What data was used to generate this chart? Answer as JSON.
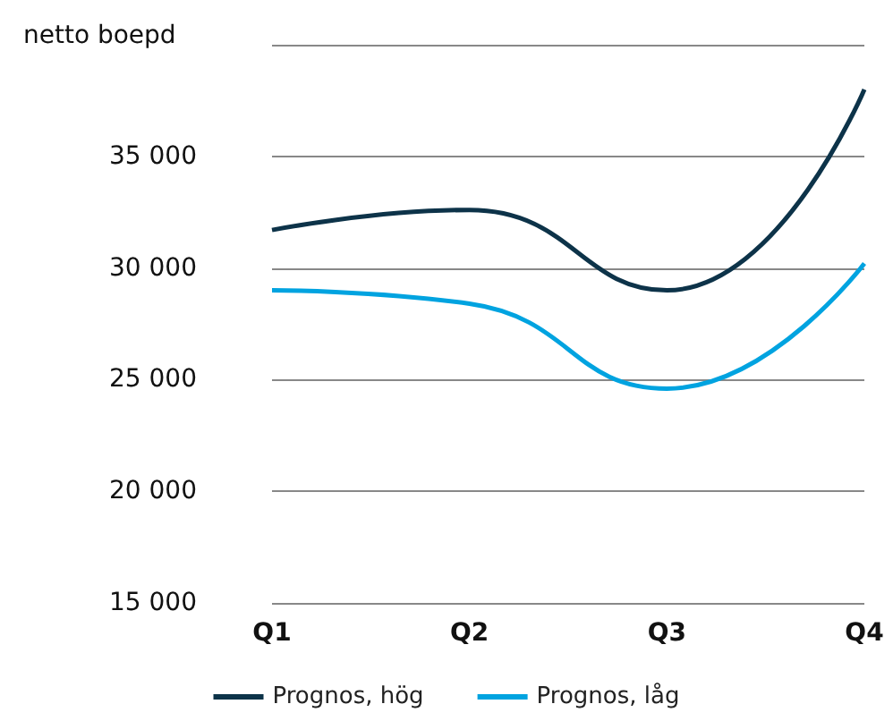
{
  "chart_data": {
    "type": "line",
    "ylabel": "netto boepd",
    "categories": [
      "Q1",
      "Q2",
      "Q3",
      "Q4"
    ],
    "series": [
      {
        "name": "Prognos, hög",
        "color": "#0d3349",
        "values": [
          31700,
          32600,
          29000,
          38000
        ]
      },
      {
        "name": "Prognos, låg",
        "color": "#00a3e0",
        "values": [
          29000,
          28400,
          24600,
          30200
        ]
      }
    ],
    "ylim": [
      15000,
      40000
    ],
    "yticks": [
      {
        "value": 15000,
        "label": "15 000"
      },
      {
        "value": 20000,
        "label": "20 000"
      },
      {
        "value": 25000,
        "label": "25 000"
      },
      {
        "value": 30000,
        "label": "30 000"
      },
      {
        "value": 35000,
        "label": "35 000"
      },
      {
        "value": 40000,
        "label": null
      }
    ],
    "grid": "y",
    "legend": "bottom",
    "marker": "none",
    "line_style": "solid"
  }
}
